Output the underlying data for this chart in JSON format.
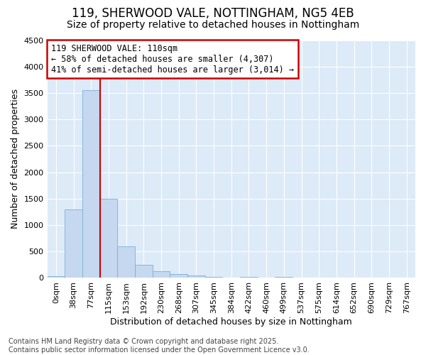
{
  "title_line1": "119, SHERWOOD VALE, NOTTINGHAM, NG5 4EB",
  "title_line2": "Size of property relative to detached houses in Nottingham",
  "xlabel": "Distribution of detached houses by size in Nottingham",
  "ylabel": "Number of detached properties",
  "bin_labels": [
    "0sqm",
    "38sqm",
    "77sqm",
    "115sqm",
    "153sqm",
    "192sqm",
    "230sqm",
    "268sqm",
    "307sqm",
    "345sqm",
    "384sqm",
    "422sqm",
    "460sqm",
    "499sqm",
    "537sqm",
    "575sqm",
    "614sqm",
    "652sqm",
    "690sqm",
    "729sqm",
    "767sqm"
  ],
  "bar_values": [
    30,
    1300,
    3550,
    1500,
    600,
    250,
    130,
    70,
    50,
    20,
    5,
    25,
    0,
    18,
    0,
    0,
    0,
    0,
    0,
    0,
    0
  ],
  "bar_color": "#c5d8f0",
  "bar_edge_color": "#7aafd4",
  "vline_color": "#cc0000",
  "annotation_box_text": "119 SHERWOOD VALE: 110sqm\n← 58% of detached houses are smaller (4,307)\n41% of semi-detached houses are larger (3,014) →",
  "annotation_box_color": "#cc0000",
  "annotation_box_facecolor": "white",
  "ylim": [
    0,
    4500
  ],
  "yticks": [
    0,
    500,
    1000,
    1500,
    2000,
    2500,
    3000,
    3500,
    4000,
    4500
  ],
  "footer_text": "Contains HM Land Registry data © Crown copyright and database right 2025.\nContains public sector information licensed under the Open Government Licence v3.0.",
  "bg_color": "#ffffff",
  "plot_bg_color": "#ddeaf8",
  "grid_color": "white",
  "title_fontsize": 12,
  "subtitle_fontsize": 10,
  "axis_label_fontsize": 9,
  "tick_fontsize": 8,
  "annotation_fontsize": 8.5,
  "footer_fontsize": 7
}
